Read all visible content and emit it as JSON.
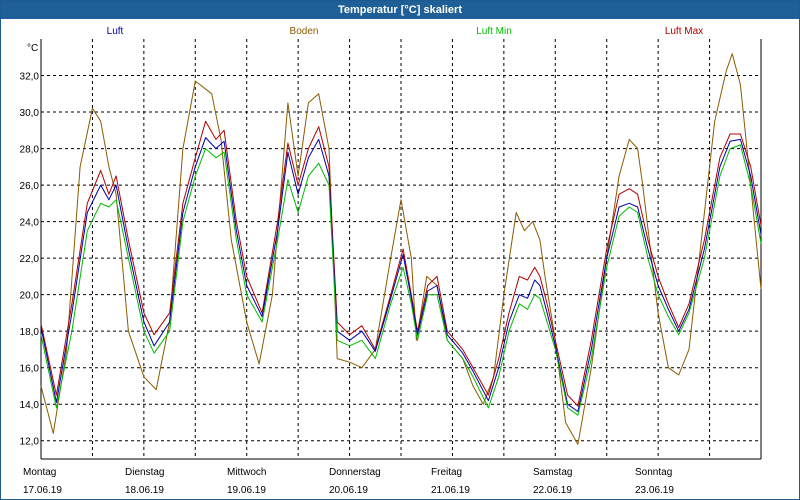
{
  "window": {
    "title": "Temperatur [°C] skaliert"
  },
  "chart_data": {
    "type": "line",
    "title": "Temperatur [°C] skaliert",
    "ylabel": "°C",
    "xlabel": "",
    "ylim": [
      11,
      34
    ],
    "xlim": [
      0,
      7
    ],
    "yticks": [
      12,
      14,
      16,
      18,
      20,
      22,
      24,
      26,
      28,
      30,
      32
    ],
    "ytick_labels": [
      "12,0",
      "14,0",
      "16,0",
      "18,0",
      "20,0",
      "22,0",
      "24,0",
      "26,0",
      "28,0",
      "30,0",
      "32,0"
    ],
    "grid": true,
    "legend_position": "top",
    "days": [
      {
        "name": "Montag",
        "date": "17.06.19"
      },
      {
        "name": "Dienstag",
        "date": "18.06.19"
      },
      {
        "name": "Mittwoch",
        "date": "19.06.19"
      },
      {
        "name": "Donnerstag",
        "date": "20.06.19"
      },
      {
        "name": "Freitag",
        "date": "21.06.19"
      },
      {
        "name": "Samstag",
        "date": "22.06.19"
      },
      {
        "name": "Sonntag",
        "date": "23.06.19"
      }
    ],
    "series": [
      {
        "name": "Boden",
        "color": "#8b5a00",
        "points": [
          [
            0,
            15.0
          ],
          [
            0.12,
            12.4
          ],
          [
            0.25,
            17.0
          ],
          [
            0.38,
            27.0
          ],
          [
            0.5,
            30.2
          ],
          [
            0.58,
            29.5
          ],
          [
            0.66,
            27.0
          ],
          [
            0.73,
            25.5
          ],
          [
            0.85,
            18.0
          ],
          [
            1.0,
            15.5
          ],
          [
            1.12,
            14.8
          ],
          [
            1.25,
            18.5
          ],
          [
            1.38,
            28.0
          ],
          [
            1.5,
            31.7
          ],
          [
            1.66,
            31.0
          ],
          [
            1.75,
            28.5
          ],
          [
            1.85,
            23.0
          ],
          [
            2.0,
            18.5
          ],
          [
            2.12,
            16.2
          ],
          [
            2.25,
            20.0
          ],
          [
            2.4,
            30.5
          ],
          [
            2.5,
            26.5
          ],
          [
            2.6,
            30.5
          ],
          [
            2.7,
            31.0
          ],
          [
            2.8,
            28.0
          ],
          [
            2.88,
            16.5
          ],
          [
            3.0,
            16.3
          ],
          [
            3.12,
            16.0
          ],
          [
            3.25,
            17.0
          ],
          [
            3.4,
            22.0
          ],
          [
            3.5,
            25.2
          ],
          [
            3.6,
            22.0
          ],
          [
            3.65,
            17.5
          ],
          [
            3.75,
            21.0
          ],
          [
            3.85,
            20.5
          ],
          [
            3.95,
            17.5
          ],
          [
            4.1,
            16.5
          ],
          [
            4.2,
            15.0
          ],
          [
            4.3,
            14.0
          ],
          [
            4.4,
            15.5
          ],
          [
            4.5,
            20.0
          ],
          [
            4.62,
            24.5
          ],
          [
            4.7,
            23.5
          ],
          [
            4.78,
            24.0
          ],
          [
            4.85,
            23.0
          ],
          [
            4.9,
            21.0
          ],
          [
            5.0,
            17.5
          ],
          [
            5.1,
            13.0
          ],
          [
            5.22,
            11.8
          ],
          [
            5.35,
            16.0
          ],
          [
            5.5,
            22.0
          ],
          [
            5.62,
            26.5
          ],
          [
            5.72,
            28.5
          ],
          [
            5.8,
            28.0
          ],
          [
            5.85,
            26.0
          ],
          [
            6.0,
            19.0
          ],
          [
            6.1,
            16.0
          ],
          [
            6.2,
            15.6
          ],
          [
            6.3,
            17.0
          ],
          [
            6.4,
            22.0
          ],
          [
            6.55,
            29.5
          ],
          [
            6.66,
            32.2
          ],
          [
            6.72,
            33.2
          ],
          [
            6.8,
            31.5
          ],
          [
            6.9,
            26.0
          ],
          [
            7.0,
            20.3
          ]
        ]
      },
      {
        "name": "Luft Max",
        "color": "#b00000",
        "points": [
          [
            0,
            18.4
          ],
          [
            0.15,
            14.5
          ],
          [
            0.3,
            19.5
          ],
          [
            0.45,
            25.0
          ],
          [
            0.58,
            26.8
          ],
          [
            0.66,
            25.5
          ],
          [
            0.73,
            26.5
          ],
          [
            0.85,
            23.0
          ],
          [
            1.0,
            19.0
          ],
          [
            1.1,
            17.8
          ],
          [
            1.25,
            19.0
          ],
          [
            1.38,
            25.0
          ],
          [
            1.5,
            27.5
          ],
          [
            1.6,
            29.5
          ],
          [
            1.7,
            28.5
          ],
          [
            1.78,
            29.0
          ],
          [
            1.9,
            24.0
          ],
          [
            2.0,
            21.0
          ],
          [
            2.15,
            19.0
          ],
          [
            2.3,
            24.0
          ],
          [
            2.4,
            28.3
          ],
          [
            2.5,
            26.0
          ],
          [
            2.6,
            28.0
          ],
          [
            2.7,
            29.2
          ],
          [
            2.8,
            27.0
          ],
          [
            2.88,
            18.5
          ],
          [
            3.0,
            17.8
          ],
          [
            3.12,
            18.3
          ],
          [
            3.25,
            17.0
          ],
          [
            3.4,
            20.0
          ],
          [
            3.52,
            22.5
          ],
          [
            3.6,
            20.0
          ],
          [
            3.66,
            18.0
          ],
          [
            3.76,
            20.5
          ],
          [
            3.85,
            21.0
          ],
          [
            3.95,
            18.0
          ],
          [
            4.1,
            17.0
          ],
          [
            4.2,
            16.0
          ],
          [
            4.35,
            14.5
          ],
          [
            4.45,
            16.5
          ],
          [
            4.55,
            19.0
          ],
          [
            4.65,
            21.0
          ],
          [
            4.73,
            20.8
          ],
          [
            4.8,
            21.5
          ],
          [
            4.85,
            21.0
          ],
          [
            4.92,
            19.5
          ],
          [
            5.0,
            17.5
          ],
          [
            5.12,
            14.5
          ],
          [
            5.22,
            13.9
          ],
          [
            5.35,
            17.5
          ],
          [
            5.5,
            22.5
          ],
          [
            5.62,
            25.5
          ],
          [
            5.72,
            25.8
          ],
          [
            5.8,
            25.5
          ],
          [
            5.9,
            23.0
          ],
          [
            6.0,
            21.0
          ],
          [
            6.1,
            19.5
          ],
          [
            6.2,
            18.2
          ],
          [
            6.3,
            19.5
          ],
          [
            6.45,
            23.0
          ],
          [
            6.6,
            27.5
          ],
          [
            6.7,
            28.8
          ],
          [
            6.8,
            28.8
          ],
          [
            6.9,
            27.0
          ],
          [
            7.0,
            23.8
          ]
        ]
      },
      {
        "name": "Luft",
        "color": "#0000aa",
        "points": [
          [
            0,
            18.2
          ],
          [
            0.15,
            14.1
          ],
          [
            0.3,
            19.0
          ],
          [
            0.45,
            24.5
          ],
          [
            0.58,
            26.0
          ],
          [
            0.66,
            25.2
          ],
          [
            0.73,
            26.0
          ],
          [
            0.85,
            22.5
          ],
          [
            1.0,
            18.5
          ],
          [
            1.1,
            17.2
          ],
          [
            1.25,
            18.5
          ],
          [
            1.38,
            24.5
          ],
          [
            1.5,
            27.0
          ],
          [
            1.6,
            28.6
          ],
          [
            1.7,
            28.0
          ],
          [
            1.78,
            28.4
          ],
          [
            1.9,
            23.5
          ],
          [
            2.0,
            20.5
          ],
          [
            2.15,
            18.8
          ],
          [
            2.3,
            23.5
          ],
          [
            2.4,
            27.8
          ],
          [
            2.5,
            25.5
          ],
          [
            2.6,
            27.5
          ],
          [
            2.7,
            28.5
          ],
          [
            2.8,
            26.5
          ],
          [
            2.88,
            18.0
          ],
          [
            3.0,
            17.5
          ],
          [
            3.12,
            18.0
          ],
          [
            3.25,
            16.9
          ],
          [
            3.4,
            19.8
          ],
          [
            3.52,
            22.2
          ],
          [
            3.6,
            19.8
          ],
          [
            3.66,
            17.8
          ],
          [
            3.76,
            20.2
          ],
          [
            3.85,
            20.5
          ],
          [
            3.95,
            17.8
          ],
          [
            4.1,
            16.8
          ],
          [
            4.2,
            15.8
          ],
          [
            4.35,
            14.2
          ],
          [
            4.45,
            16.0
          ],
          [
            4.55,
            18.5
          ],
          [
            4.65,
            20.0
          ],
          [
            4.73,
            19.8
          ],
          [
            4.8,
            20.8
          ],
          [
            4.85,
            20.5
          ],
          [
            4.92,
            19.0
          ],
          [
            5.0,
            17.2
          ],
          [
            5.12,
            14.0
          ],
          [
            5.22,
            13.6
          ],
          [
            5.35,
            17.0
          ],
          [
            5.5,
            22.0
          ],
          [
            5.62,
            24.8
          ],
          [
            5.72,
            25.0
          ],
          [
            5.8,
            24.8
          ],
          [
            5.9,
            22.5
          ],
          [
            6.0,
            20.5
          ],
          [
            6.1,
            19.2
          ],
          [
            6.2,
            18.0
          ],
          [
            6.3,
            19.2
          ],
          [
            6.45,
            22.5
          ],
          [
            6.6,
            27.0
          ],
          [
            6.7,
            28.4
          ],
          [
            6.8,
            28.5
          ],
          [
            6.9,
            26.5
          ],
          [
            7.0,
            23.3
          ]
        ]
      },
      {
        "name": "Luft Min",
        "color": "#00bb00",
        "points": [
          [
            0,
            17.8
          ],
          [
            0.15,
            13.8
          ],
          [
            0.3,
            18.0
          ],
          [
            0.45,
            23.5
          ],
          [
            0.58,
            25.0
          ],
          [
            0.66,
            24.8
          ],
          [
            0.73,
            25.2
          ],
          [
            0.85,
            22.0
          ],
          [
            1.0,
            18.0
          ],
          [
            1.1,
            16.8
          ],
          [
            1.25,
            18.0
          ],
          [
            1.38,
            24.0
          ],
          [
            1.5,
            26.5
          ],
          [
            1.6,
            28.0
          ],
          [
            1.7,
            27.5
          ],
          [
            1.78,
            27.8
          ],
          [
            1.9,
            23.0
          ],
          [
            2.0,
            20.0
          ],
          [
            2.15,
            18.5
          ],
          [
            2.3,
            23.0
          ],
          [
            2.4,
            26.3
          ],
          [
            2.5,
            24.5
          ],
          [
            2.6,
            26.5
          ],
          [
            2.7,
            27.2
          ],
          [
            2.8,
            26.0
          ],
          [
            2.88,
            17.5
          ],
          [
            3.0,
            17.2
          ],
          [
            3.12,
            17.5
          ],
          [
            3.25,
            16.5
          ],
          [
            3.4,
            19.5
          ],
          [
            3.52,
            21.5
          ],
          [
            3.6,
            19.5
          ],
          [
            3.66,
            17.5
          ],
          [
            3.76,
            20.0
          ],
          [
            3.85,
            20.0
          ],
          [
            3.95,
            17.5
          ],
          [
            4.1,
            16.5
          ],
          [
            4.2,
            15.5
          ],
          [
            4.35,
            13.8
          ],
          [
            4.45,
            15.5
          ],
          [
            4.55,
            18.0
          ],
          [
            4.65,
            19.5
          ],
          [
            4.73,
            19.2
          ],
          [
            4.8,
            20.0
          ],
          [
            4.85,
            19.8
          ],
          [
            4.92,
            18.5
          ],
          [
            5.0,
            17.0
          ],
          [
            5.12,
            13.8
          ],
          [
            5.22,
            13.4
          ],
          [
            5.35,
            16.5
          ],
          [
            5.5,
            21.5
          ],
          [
            5.62,
            24.3
          ],
          [
            5.72,
            24.8
          ],
          [
            5.8,
            24.5
          ],
          [
            5.9,
            22.0
          ],
          [
            6.0,
            20.0
          ],
          [
            6.1,
            18.8
          ],
          [
            6.2,
            17.8
          ],
          [
            6.3,
            19.0
          ],
          [
            6.45,
            22.0
          ],
          [
            6.6,
            26.5
          ],
          [
            6.7,
            28.0
          ],
          [
            6.8,
            28.2
          ],
          [
            6.9,
            26.0
          ],
          [
            7.0,
            22.8
          ]
        ]
      }
    ]
  }
}
